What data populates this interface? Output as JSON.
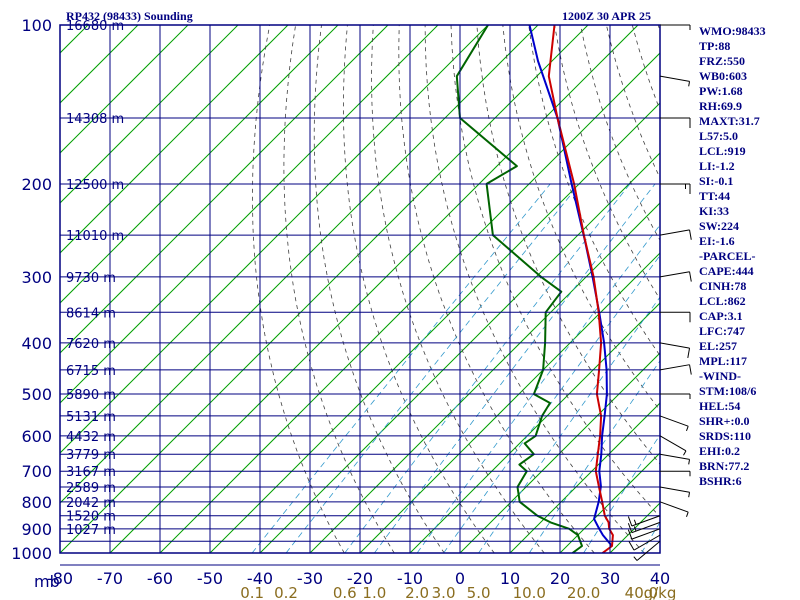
{
  "header": {
    "station": "RP432 (98433) Sounding",
    "valid": "1200Z 30 APR 25"
  },
  "indices": [
    "WMO:98433",
    "TP:88",
    "FRZ:550",
    "WB0:603",
    "PW:1.68",
    "RH:69.9",
    "MAXT:31.7",
    "L57:5.0",
    "LCL:919",
    "LI:-1.2",
    "SI:-0.1",
    "TT:44",
    "KI:33",
    "SW:224",
    "EI:-1.6",
    "-PARCEL-",
    "CAPE:444",
    "CINH:78",
    "LCL:862",
    "CAP:3.1",
    "LFC:747",
    "EL:257",
    "MPL:117",
    "-WIND-",
    "STM:108/6",
    "HEL:54",
    "SHR+:0.0",
    "SRDS:110",
    "EHI:0.2",
    "BRN:77.2",
    "BSHR:6"
  ],
  "colors": {
    "frame": "#000080",
    "isotherm": "#00a000",
    "dry_adiabat": "#404040",
    "mixing_ratio": "#3399cc",
    "temperature": "#cc0000",
    "dewpoint": "#006400",
    "parcel": "#0000cc",
    "mixing_label": "#8a6d1f"
  },
  "chart_data": {
    "type": "line",
    "title": "RP432 (98433) Sounding",
    "xlabel": "",
    "ylabel": "mb",
    "y_scale": "log-pressure",
    "skew": "temperature lines skewed 45 degrees",
    "ylim": [
      1000,
      100
    ],
    "xlim": [
      -80,
      40
    ],
    "pressure_ticks": [
      100,
      200,
      300,
      400,
      500,
      600,
      700,
      800,
      900,
      1000
    ],
    "temperature_ticks": [
      -80,
      -70,
      -60,
      -50,
      -40,
      -30,
      -20,
      -10,
      0,
      10,
      20,
      30,
      40
    ],
    "temperature_tick_labels": [
      "-80",
      "-70",
      "-60",
      "-50",
      "-40",
      "-30",
      "-20",
      "-10",
      "0",
      "10",
      "20",
      "30",
      "40"
    ],
    "height_ticks": [
      {
        "label": "16680 m",
        "p": 100
      },
      {
        "label": "14308 m",
        "p": 150
      },
      {
        "label": "12500 m",
        "p": 200
      },
      {
        "label": "11010 m",
        "p": 250
      },
      {
        "label": "9730 m",
        "p": 300
      },
      {
        "label": "8614 m",
        "p": 350
      },
      {
        "label": "7620 m",
        "p": 400
      },
      {
        "label": "6715 m",
        "p": 450
      },
      {
        "label": "5890 m",
        "p": 500
      },
      {
        "label": "5131 m",
        "p": 550
      },
      {
        "label": "4432 m",
        "p": 600
      },
      {
        "label": "3779 m",
        "p": 650
      },
      {
        "label": "3167 m",
        "p": 700
      },
      {
        "label": "2589 m",
        "p": 750
      },
      {
        "label": "2042 m",
        "p": 800
      },
      {
        "label": "1520 m",
        "p": 850
      },
      {
        "label": "1027 m",
        "p": 900
      }
    ],
    "mixing_ratio_labels": [
      "0.1",
      "0.2",
      "0.6",
      "1.0",
      "2.0",
      "3.0",
      "5.0",
      "10.0",
      "20.0",
      "40.0"
    ],
    "mixing_ratio_unit": "g/kg",
    "series": [
      {
        "name": "Temperature",
        "points": [
          {
            "p": 1000,
            "t": 28.5
          },
          {
            "p": 970,
            "t": 29.0
          },
          {
            "p": 925,
            "t": 27.0
          },
          {
            "p": 900,
            "t": 25.0
          },
          {
            "p": 875,
            "t": 23.6
          },
          {
            "p": 850,
            "t": 21.5
          },
          {
            "p": 800,
            "t": 18.2
          },
          {
            "p": 750,
            "t": 14.6
          },
          {
            "p": 700,
            "t": 10.8
          },
          {
            "p": 650,
            "t": 7.8
          },
          {
            "p": 600,
            "t": 4.6
          },
          {
            "p": 550,
            "t": 0.8
          },
          {
            "p": 500,
            "t": -4.4
          },
          {
            "p": 450,
            "t": -8.8
          },
          {
            "p": 400,
            "t": -13.8
          },
          {
            "p": 350,
            "t": -20.4
          },
          {
            "p": 300,
            "t": -28.5
          },
          {
            "p": 250,
            "t": -38.8
          },
          {
            "p": 200,
            "t": -51.0
          },
          {
            "p": 150,
            "t": -67.5
          },
          {
            "p": 125,
            "t": -77.6
          },
          {
            "p": 100,
            "t": -86.7
          }
        ]
      },
      {
        "name": "Dewpoint",
        "points": [
          {
            "p": 1000,
            "t": 22.5
          },
          {
            "p": 970,
            "t": 23.0
          },
          {
            "p": 925,
            "t": 20.0
          },
          {
            "p": 900,
            "t": 17.0
          },
          {
            "p": 875,
            "t": 12.0
          },
          {
            "p": 850,
            "t": 8.0
          },
          {
            "p": 800,
            "t": 1.7
          },
          {
            "p": 750,
            "t": -1.7
          },
          {
            "p": 700,
            "t": -3.0
          },
          {
            "p": 680,
            "t": -5.8
          },
          {
            "p": 650,
            "t": -5.0
          },
          {
            "p": 620,
            "t": -9.0
          },
          {
            "p": 600,
            "t": -8.3
          },
          {
            "p": 550,
            "t": -11.0
          },
          {
            "p": 520,
            "t": -12.0
          },
          {
            "p": 500,
            "t": -17.0
          },
          {
            "p": 450,
            "t": -20.0
          },
          {
            "p": 400,
            "t": -25.0
          },
          {
            "p": 350,
            "t": -31.0
          },
          {
            "p": 320,
            "t": -32.0
          },
          {
            "p": 300,
            "t": -39.0
          },
          {
            "p": 250,
            "t": -57.0
          },
          {
            "p": 200,
            "t": -68.5
          },
          {
            "p": 185,
            "t": -66.0
          },
          {
            "p": 150,
            "t": -87.0
          },
          {
            "p": 125,
            "t": -96.0
          },
          {
            "p": 100,
            "t": -100.0
          }
        ]
      },
      {
        "name": "Parcel",
        "points": [
          {
            "p": 970,
            "t": 29.0
          },
          {
            "p": 925,
            "t": 25.0
          },
          {
            "p": 900,
            "t": 23.0
          },
          {
            "p": 862,
            "t": 20.0
          },
          {
            "p": 800,
            "t": 17.5
          },
          {
            "p": 747,
            "t": 14.8
          },
          {
            "p": 700,
            "t": 11.5
          },
          {
            "p": 650,
            "t": 8.5
          },
          {
            "p": 600,
            "t": 5.0
          },
          {
            "p": 550,
            "t": 1.5
          },
          {
            "p": 500,
            "t": -2.4
          },
          {
            "p": 450,
            "t": -7.3
          },
          {
            "p": 400,
            "t": -13.2
          },
          {
            "p": 350,
            "t": -20.3
          },
          {
            "p": 300,
            "t": -28.7
          },
          {
            "p": 257,
            "t": -37.3
          },
          {
            "p": 200,
            "t": -51.5
          },
          {
            "p": 150,
            "t": -67.5
          },
          {
            "p": 117,
            "t": -82.8
          },
          {
            "p": 100,
            "t": -91.7
          }
        ]
      }
    ],
    "wind_barbs": [
      {
        "p": 100,
        "dir": 90,
        "spd": 5
      },
      {
        "p": 125,
        "dir": 100,
        "spd": 5
      },
      {
        "p": 150,
        "dir": 90,
        "spd": 10
      },
      {
        "p": 200,
        "dir": 90,
        "spd": 15
      },
      {
        "p": 250,
        "dir": 80,
        "spd": 10
      },
      {
        "p": 300,
        "dir": 80,
        "spd": 10
      },
      {
        "p": 350,
        "dir": 90,
        "spd": 10
      },
      {
        "p": 400,
        "dir": 100,
        "spd": 10
      },
      {
        "p": 450,
        "dir": 80,
        "spd": 10
      },
      {
        "p": 500,
        "dir": 90,
        "spd": 5
      },
      {
        "p": 550,
        "dir": 110,
        "spd": 5
      },
      {
        "p": 600,
        "dir": 120,
        "spd": 5
      },
      {
        "p": 650,
        "dir": 100,
        "spd": 5
      },
      {
        "p": 700,
        "dir": 90,
        "spd": 5
      },
      {
        "p": 750,
        "dir": 100,
        "spd": 5
      },
      {
        "p": 800,
        "dir": 110,
        "spd": 5
      },
      {
        "p": 850,
        "dir": 250,
        "spd": 15
      },
      {
        "p": 875,
        "dir": 250,
        "spd": 15
      },
      {
        "p": 900,
        "dir": 250,
        "spd": 10
      },
      {
        "p": 925,
        "dir": 240,
        "spd": 10
      },
      {
        "p": 950,
        "dir": 230,
        "spd": 5
      }
    ]
  }
}
